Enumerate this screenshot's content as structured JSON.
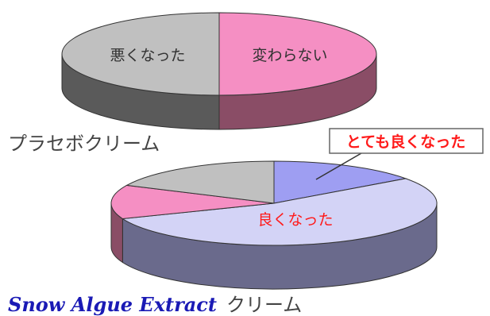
{
  "chart_data": [
    {
      "type": "pie",
      "title": "プラセボクリーム",
      "slices": [
        {
          "label": "悪くなった",
          "value": 50,
          "color": "#f58fc3",
          "side_color": "#8a4d66"
        },
        {
          "label": "変わらない",
          "value": 50,
          "color": "#c0c0c0",
          "side_color": "#5a5a5a"
        }
      ]
    },
    {
      "type": "pie",
      "title_brand": "Snow Algue Extract",
      "title_suffix": "クリーム",
      "slices": [
        {
          "label": "とても良くなった",
          "value": 15,
          "color": "#9e9ef2",
          "side_color": "#4d4d82"
        },
        {
          "label": "良くなった",
          "value": 54,
          "color": "#d3d3f6",
          "side_color": "#6a6a8c"
        },
        {
          "label": "",
          "value": 13,
          "color": "#f58fc3",
          "side_color": "#8a4d66"
        },
        {
          "label": "",
          "value": 18,
          "color": "#c0c0c0",
          "side_color": "#5a5a5a"
        }
      ]
    }
  ],
  "colors": {
    "callout_text": "#ff1a1a",
    "label_text": "#333333",
    "brand_text": "#1a1ab5"
  }
}
